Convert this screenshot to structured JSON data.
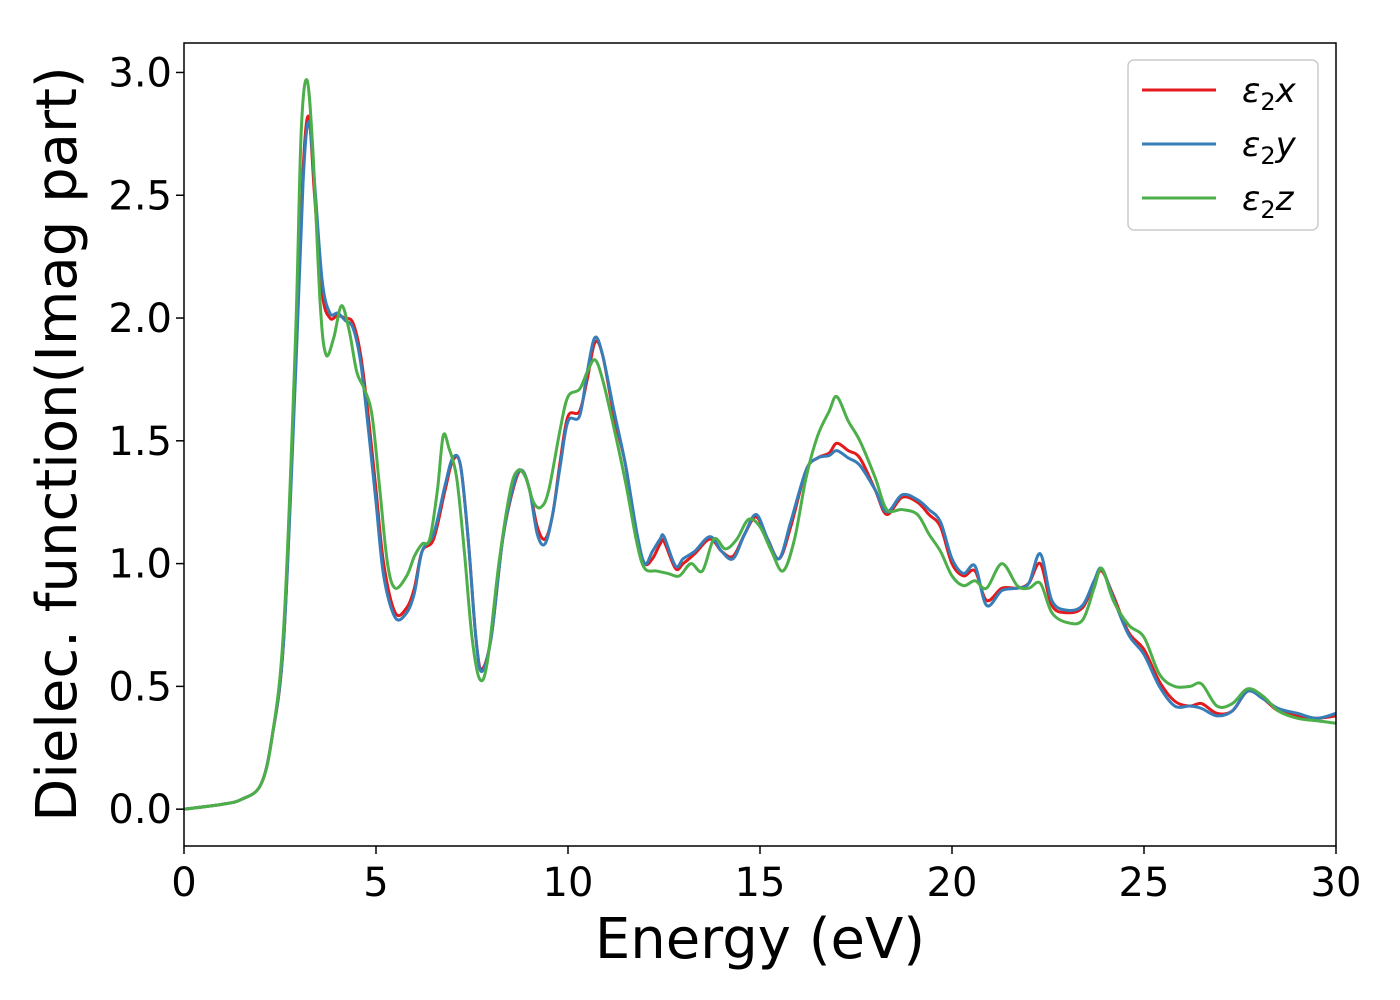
{
  "chart_data": {
    "type": "line",
    "xlabel": "Energy (eV)",
    "ylabel": "Dielec. function(Imag part)",
    "xlim": [
      0,
      30
    ],
    "ylim": [
      -0.15,
      3.12
    ],
    "xticks": [
      0,
      5,
      10,
      15,
      20,
      25,
      30
    ],
    "xtick_labels": [
      "0",
      "5",
      "10",
      "15",
      "20",
      "25",
      "30"
    ],
    "yticks": [
      0.0,
      0.5,
      1.0,
      1.5,
      2.0,
      2.5,
      3.0
    ],
    "ytick_labels": [
      "0.0",
      "0.5",
      "1.0",
      "1.5",
      "2.0",
      "2.5",
      "3.0"
    ],
    "grid": false,
    "legend_position": "top-right",
    "series": [
      {
        "name": "x",
        "legend_base": "ε",
        "legend_sub": "2",
        "legend_suffix": "x",
        "color": "#e41a1c",
        "points": [
          [
            0,
            0
          ],
          [
            1,
            0.02
          ],
          [
            1.5,
            0.04
          ],
          [
            2,
            0.1
          ],
          [
            2.3,
            0.3
          ],
          [
            2.6,
            0.7
          ],
          [
            2.9,
            1.8
          ],
          [
            3.1,
            2.6
          ],
          [
            3.25,
            2.82
          ],
          [
            3.4,
            2.5
          ],
          [
            3.6,
            2.1
          ],
          [
            3.8,
            2.0
          ],
          [
            4.0,
            2.01
          ],
          [
            4.2,
            2.0
          ],
          [
            4.4,
            1.98
          ],
          [
            4.6,
            1.85
          ],
          [
            4.8,
            1.6
          ],
          [
            5.0,
            1.3
          ],
          [
            5.2,
            1.0
          ],
          [
            5.5,
            0.8
          ],
          [
            5.8,
            0.82
          ],
          [
            6.0,
            0.9
          ],
          [
            6.2,
            1.05
          ],
          [
            6.5,
            1.1
          ],
          [
            6.8,
            1.3
          ],
          [
            7.0,
            1.42
          ],
          [
            7.2,
            1.4
          ],
          [
            7.4,
            1.1
          ],
          [
            7.6,
            0.7
          ],
          [
            7.75,
            0.57
          ],
          [
            8.0,
            0.7
          ],
          [
            8.3,
            1.1
          ],
          [
            8.6,
            1.32
          ],
          [
            8.8,
            1.38
          ],
          [
            9.0,
            1.3
          ],
          [
            9.2,
            1.15
          ],
          [
            9.4,
            1.1
          ],
          [
            9.6,
            1.2
          ],
          [
            9.8,
            1.42
          ],
          [
            10.0,
            1.6
          ],
          [
            10.3,
            1.62
          ],
          [
            10.5,
            1.75
          ],
          [
            10.7,
            1.9
          ],
          [
            10.9,
            1.85
          ],
          [
            11.2,
            1.6
          ],
          [
            11.5,
            1.4
          ],
          [
            11.8,
            1.1
          ],
          [
            12.0,
            1.0
          ],
          [
            12.2,
            1.02
          ],
          [
            12.4,
            1.08
          ],
          [
            12.5,
            1.09
          ],
          [
            12.8,
            0.98
          ],
          [
            13.0,
            1.0
          ],
          [
            13.3,
            1.04
          ],
          [
            13.7,
            1.1
          ],
          [
            14.0,
            1.05
          ],
          [
            14.3,
            1.03
          ],
          [
            14.6,
            1.12
          ],
          [
            14.9,
            1.19
          ],
          [
            15.2,
            1.1
          ],
          [
            15.5,
            1.02
          ],
          [
            15.8,
            1.15
          ],
          [
            16.2,
            1.38
          ],
          [
            16.5,
            1.43
          ],
          [
            16.8,
            1.45
          ],
          [
            17.0,
            1.49
          ],
          [
            17.3,
            1.46
          ],
          [
            17.6,
            1.43
          ],
          [
            18.0,
            1.3
          ],
          [
            18.3,
            1.2
          ],
          [
            18.7,
            1.27
          ],
          [
            19.1,
            1.25
          ],
          [
            19.4,
            1.2
          ],
          [
            19.7,
            1.15
          ],
          [
            20.0,
            1.0
          ],
          [
            20.3,
            0.95
          ],
          [
            20.6,
            0.97
          ],
          [
            20.9,
            0.85
          ],
          [
            21.3,
            0.9
          ],
          [
            21.7,
            0.9
          ],
          [
            22.0,
            0.92
          ],
          [
            22.3,
            1.0
          ],
          [
            22.6,
            0.83
          ],
          [
            23.0,
            0.8
          ],
          [
            23.4,
            0.82
          ],
          [
            23.7,
            0.92
          ],
          [
            23.9,
            0.97
          ],
          [
            24.2,
            0.87
          ],
          [
            24.6,
            0.72
          ],
          [
            25.0,
            0.65
          ],
          [
            25.4,
            0.52
          ],
          [
            25.8,
            0.44
          ],
          [
            26.2,
            0.42
          ],
          [
            26.5,
            0.43
          ],
          [
            26.9,
            0.39
          ],
          [
            27.3,
            0.4
          ],
          [
            27.7,
            0.48
          ],
          [
            28.1,
            0.45
          ],
          [
            28.5,
            0.4
          ],
          [
            29.0,
            0.38
          ],
          [
            29.5,
            0.37
          ],
          [
            30.0,
            0.38
          ]
        ]
      },
      {
        "name": "y",
        "legend_base": "ε",
        "legend_sub": "2",
        "legend_suffix": "y",
        "color": "#377eb8",
        "points": [
          [
            0,
            0
          ],
          [
            1,
            0.02
          ],
          [
            1.5,
            0.04
          ],
          [
            2,
            0.1
          ],
          [
            2.3,
            0.3
          ],
          [
            2.6,
            0.7
          ],
          [
            2.9,
            1.75
          ],
          [
            3.1,
            2.55
          ],
          [
            3.25,
            2.8
          ],
          [
            3.4,
            2.55
          ],
          [
            3.6,
            2.15
          ],
          [
            3.8,
            2.02
          ],
          [
            4.0,
            2.02
          ],
          [
            4.2,
            1.99
          ],
          [
            4.4,
            1.96
          ],
          [
            4.6,
            1.82
          ],
          [
            4.8,
            1.55
          ],
          [
            5.0,
            1.25
          ],
          [
            5.2,
            0.95
          ],
          [
            5.5,
            0.78
          ],
          [
            5.8,
            0.8
          ],
          [
            6.0,
            0.88
          ],
          [
            6.2,
            1.05
          ],
          [
            6.5,
            1.12
          ],
          [
            6.8,
            1.32
          ],
          [
            7.0,
            1.43
          ],
          [
            7.2,
            1.4
          ],
          [
            7.4,
            1.1
          ],
          [
            7.6,
            0.7
          ],
          [
            7.75,
            0.56
          ],
          [
            8.0,
            0.7
          ],
          [
            8.3,
            1.1
          ],
          [
            8.6,
            1.33
          ],
          [
            8.8,
            1.38
          ],
          [
            9.0,
            1.3
          ],
          [
            9.2,
            1.12
          ],
          [
            9.4,
            1.08
          ],
          [
            9.6,
            1.2
          ],
          [
            9.8,
            1.4
          ],
          [
            10.0,
            1.58
          ],
          [
            10.3,
            1.6
          ],
          [
            10.5,
            1.78
          ],
          [
            10.7,
            1.92
          ],
          [
            10.9,
            1.85
          ],
          [
            11.2,
            1.62
          ],
          [
            11.5,
            1.4
          ],
          [
            11.8,
            1.12
          ],
          [
            12.0,
            1.0
          ],
          [
            12.2,
            1.05
          ],
          [
            12.4,
            1.1
          ],
          [
            12.5,
            1.11
          ],
          [
            12.8,
            0.99
          ],
          [
            13.0,
            1.02
          ],
          [
            13.3,
            1.05
          ],
          [
            13.7,
            1.11
          ],
          [
            14.0,
            1.05
          ],
          [
            14.3,
            1.02
          ],
          [
            14.6,
            1.12
          ],
          [
            14.9,
            1.2
          ],
          [
            15.2,
            1.1
          ],
          [
            15.5,
            1.02
          ],
          [
            15.8,
            1.17
          ],
          [
            16.2,
            1.38
          ],
          [
            16.5,
            1.43
          ],
          [
            16.8,
            1.44
          ],
          [
            17.0,
            1.46
          ],
          [
            17.3,
            1.43
          ],
          [
            17.6,
            1.4
          ],
          [
            18.0,
            1.3
          ],
          [
            18.3,
            1.21
          ],
          [
            18.7,
            1.28
          ],
          [
            19.1,
            1.26
          ],
          [
            19.4,
            1.22
          ],
          [
            19.7,
            1.17
          ],
          [
            20.0,
            1.02
          ],
          [
            20.3,
            0.96
          ],
          [
            20.6,
            0.99
          ],
          [
            20.9,
            0.83
          ],
          [
            21.3,
            0.89
          ],
          [
            21.7,
            0.9
          ],
          [
            22.0,
            0.92
          ],
          [
            22.3,
            1.04
          ],
          [
            22.6,
            0.85
          ],
          [
            23.0,
            0.81
          ],
          [
            23.4,
            0.83
          ],
          [
            23.7,
            0.93
          ],
          [
            23.9,
            0.98
          ],
          [
            24.2,
            0.86
          ],
          [
            24.6,
            0.71
          ],
          [
            25.0,
            0.63
          ],
          [
            25.4,
            0.5
          ],
          [
            25.8,
            0.42
          ],
          [
            26.2,
            0.42
          ],
          [
            26.5,
            0.41
          ],
          [
            26.9,
            0.38
          ],
          [
            27.3,
            0.4
          ],
          [
            27.7,
            0.48
          ],
          [
            28.1,
            0.45
          ],
          [
            28.5,
            0.41
          ],
          [
            29.0,
            0.39
          ],
          [
            29.5,
            0.37
          ],
          [
            30.0,
            0.39
          ]
        ]
      },
      {
        "name": "z",
        "legend_base": "ε",
        "legend_sub": "2",
        "legend_suffix": "z",
        "color": "#4daf4a",
        "points": [
          [
            0,
            0
          ],
          [
            1,
            0.02
          ],
          [
            1.5,
            0.04
          ],
          [
            2,
            0.1
          ],
          [
            2.3,
            0.3
          ],
          [
            2.6,
            0.75
          ],
          [
            2.9,
            1.9
          ],
          [
            3.05,
            2.75
          ],
          [
            3.2,
            2.97
          ],
          [
            3.35,
            2.7
          ],
          [
            3.55,
            2.05
          ],
          [
            3.7,
            1.85
          ],
          [
            3.9,
            1.92
          ],
          [
            4.1,
            2.05
          ],
          [
            4.3,
            1.95
          ],
          [
            4.5,
            1.78
          ],
          [
            4.7,
            1.71
          ],
          [
            4.9,
            1.6
          ],
          [
            5.1,
            1.3
          ],
          [
            5.3,
            1.0
          ],
          [
            5.5,
            0.9
          ],
          [
            5.8,
            0.95
          ],
          [
            6.0,
            1.03
          ],
          [
            6.2,
            1.08
          ],
          [
            6.4,
            1.1
          ],
          [
            6.6,
            1.3
          ],
          [
            6.75,
            1.52
          ],
          [
            6.9,
            1.47
          ],
          [
            7.1,
            1.35
          ],
          [
            7.3,
            1.05
          ],
          [
            7.5,
            0.7
          ],
          [
            7.7,
            0.53
          ],
          [
            7.9,
            0.6
          ],
          [
            8.2,
            1.0
          ],
          [
            8.5,
            1.3
          ],
          [
            8.7,
            1.38
          ],
          [
            8.9,
            1.35
          ],
          [
            9.1,
            1.25
          ],
          [
            9.3,
            1.23
          ],
          [
            9.5,
            1.3
          ],
          [
            9.8,
            1.55
          ],
          [
            10.0,
            1.68
          ],
          [
            10.3,
            1.71
          ],
          [
            10.5,
            1.78
          ],
          [
            10.7,
            1.83
          ],
          [
            10.9,
            1.75
          ],
          [
            11.2,
            1.55
          ],
          [
            11.5,
            1.33
          ],
          [
            11.8,
            1.08
          ],
          [
            12.0,
            0.98
          ],
          [
            12.3,
            0.97
          ],
          [
            12.6,
            0.96
          ],
          [
            12.9,
            0.95
          ],
          [
            13.2,
            1.0
          ],
          [
            13.5,
            0.97
          ],
          [
            13.8,
            1.1
          ],
          [
            14.1,
            1.06
          ],
          [
            14.4,
            1.1
          ],
          [
            14.7,
            1.18
          ],
          [
            15.0,
            1.15
          ],
          [
            15.3,
            1.05
          ],
          [
            15.6,
            0.97
          ],
          [
            15.9,
            1.1
          ],
          [
            16.2,
            1.35
          ],
          [
            16.5,
            1.52
          ],
          [
            16.8,
            1.62
          ],
          [
            17.0,
            1.68
          ],
          [
            17.3,
            1.58
          ],
          [
            17.6,
            1.5
          ],
          [
            18.0,
            1.35
          ],
          [
            18.3,
            1.22
          ],
          [
            18.7,
            1.22
          ],
          [
            19.1,
            1.2
          ],
          [
            19.4,
            1.12
          ],
          [
            19.7,
            1.05
          ],
          [
            20.0,
            0.95
          ],
          [
            20.3,
            0.91
          ],
          [
            20.6,
            0.93
          ],
          [
            20.9,
            0.9
          ],
          [
            21.3,
            1.0
          ],
          [
            21.7,
            0.91
          ],
          [
            22.0,
            0.9
          ],
          [
            22.3,
            0.92
          ],
          [
            22.6,
            0.8
          ],
          [
            23.0,
            0.76
          ],
          [
            23.4,
            0.77
          ],
          [
            23.7,
            0.9
          ],
          [
            23.9,
            0.98
          ],
          [
            24.2,
            0.85
          ],
          [
            24.6,
            0.75
          ],
          [
            25.0,
            0.7
          ],
          [
            25.4,
            0.55
          ],
          [
            25.8,
            0.5
          ],
          [
            26.2,
            0.5
          ],
          [
            26.5,
            0.51
          ],
          [
            26.9,
            0.42
          ],
          [
            27.3,
            0.43
          ],
          [
            27.7,
            0.49
          ],
          [
            28.1,
            0.46
          ],
          [
            28.5,
            0.4
          ],
          [
            29.0,
            0.37
          ],
          [
            29.5,
            0.36
          ],
          [
            30.0,
            0.35
          ]
        ]
      }
    ]
  }
}
